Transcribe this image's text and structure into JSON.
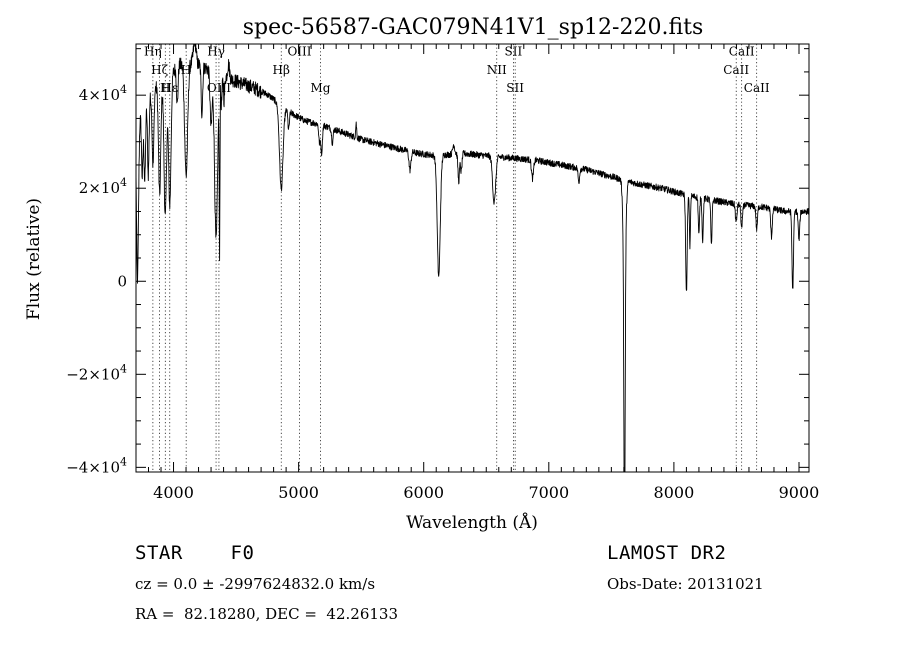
{
  "chart_data": {
    "type": "line",
    "title": "spec-56587-GAC079N41V1_sp12-220.fits",
    "xlabel": "Wavelength (Å)",
    "ylabel": "Flux (relative)",
    "xlim": [
      3700,
      9080
    ],
    "ylim": [
      -41000,
      51000
    ],
    "x_ticks": [
      {
        "value": 4000,
        "label": "4000"
      },
      {
        "value": 5000,
        "label": "5000"
      },
      {
        "value": 6000,
        "label": "6000"
      },
      {
        "value": 7000,
        "label": "7000"
      },
      {
        "value": 8000,
        "label": "8000"
      },
      {
        "value": 9000,
        "label": "9000"
      }
    ],
    "y_ticks": [
      {
        "value": -40000,
        "mant": "−4×10",
        "exp": "4"
      },
      {
        "value": -20000,
        "mant": "−2×10",
        "exp": "4"
      },
      {
        "value": 0,
        "mant": "0",
        "exp": ""
      },
      {
        "value": 20000,
        "mant": "2×10",
        "exp": "4"
      },
      {
        "value": 40000,
        "mant": "4×10",
        "exp": "4"
      }
    ],
    "lines": [
      {
        "label": "Hη",
        "x": 3835,
        "label_y": 48500
      },
      {
        "label": "Hζ",
        "x": 3889,
        "label_y": 44500
      },
      {
        "label": "Hε",
        "x": 3970,
        "label_y": 40700
      },
      {
        "label": "H",
        "x": 3934,
        "label_y": 40700
      },
      {
        "label": "H",
        "x": 4101,
        "label_y": 44500
      },
      {
        "label": "Hγ",
        "x": 4340,
        "label_y": 48500
      },
      {
        "label": "OIII",
        "x": 4363,
        "label_y": 40700
      },
      {
        "label": "Hβ",
        "x": 4861,
        "label_y": 44500
      },
      {
        "label": "OIII",
        "x": 5007,
        "label_y": 48500
      },
      {
        "label": "Mg",
        "x": 5175,
        "label_y": 40700
      },
      {
        "label": "NII",
        "x": 6584,
        "label_y": 44500
      },
      {
        "label": "SII",
        "x": 6717,
        "label_y": 48500
      },
      {
        "label": "SII",
        "x": 6731,
        "label_y": 40700
      },
      {
        "label": "CaII",
        "x": 8498,
        "label_y": 44500
      },
      {
        "label": "CaII",
        "x": 8542,
        "label_y": 48500
      },
      {
        "label": "CaII",
        "x": 8662,
        "label_y": 40700
      }
    ],
    "continuum": [
      [
        3700,
        34000
      ],
      [
        3780,
        38000
      ],
      [
        3850,
        41500
      ],
      [
        3950,
        44000
      ],
      [
        4050,
        46500
      ],
      [
        4150,
        47000
      ],
      [
        4250,
        46000
      ],
      [
        4350,
        44500
      ],
      [
        4450,
        43500
      ],
      [
        4550,
        42500
      ],
      [
        4650,
        41500
      ],
      [
        4760,
        40000
      ],
      [
        4850,
        38000
      ],
      [
        4950,
        36000
      ],
      [
        5050,
        34500
      ],
      [
        5200,
        33500
      ],
      [
        5350,
        32000
      ],
      [
        5500,
        30500
      ],
      [
        5650,
        29500
      ],
      [
        5800,
        28500
      ],
      [
        5950,
        27500
      ],
      [
        6100,
        27000
      ],
      [
        6300,
        27500
      ],
      [
        6500,
        27000
      ],
      [
        6700,
        26500
      ],
      [
        6900,
        26000
      ],
      [
        7100,
        25000
      ],
      [
        7300,
        24000
      ],
      [
        7500,
        22500
      ],
      [
        7700,
        21000
      ],
      [
        7900,
        20000
      ],
      [
        8100,
        18500
      ],
      [
        8300,
        17500
      ],
      [
        8500,
        16500
      ],
      [
        8700,
        16000
      ],
      [
        8900,
        15000
      ],
      [
        9080,
        15000
      ]
    ],
    "absorptions": [
      [
        3712,
        8,
        34000
      ],
      [
        3750,
        6,
        14000
      ],
      [
        3770,
        6,
        16000
      ],
      [
        3798,
        6,
        16000
      ],
      [
        3836,
        7,
        16000
      ],
      [
        3889,
        9,
        24000
      ],
      [
        3934,
        10,
        30000
      ],
      [
        3970,
        10,
        28000
      ],
      [
        4030,
        6,
        8000
      ],
      [
        4101,
        12,
        24000
      ],
      [
        4227,
        6,
        10000
      ],
      [
        4300,
        8,
        12000
      ],
      [
        4340,
        12,
        36000
      ],
      [
        4368,
        3,
        36000
      ],
      [
        4383,
        5,
        6000
      ],
      [
        4404,
        5,
        5000
      ],
      [
        4861,
        14,
        18000
      ],
      [
        4920,
        6,
        4000
      ],
      [
        5167,
        6,
        4000
      ],
      [
        5184,
        6,
        6000
      ],
      [
        5270,
        6,
        3000
      ],
      [
        5890,
        8,
        4000
      ],
      [
        6120,
        12,
        26000
      ],
      [
        6280,
        6,
        6000
      ],
      [
        6300,
        6,
        4000
      ],
      [
        6563,
        12,
        10000
      ],
      [
        6870,
        8,
        4000
      ],
      [
        7240,
        6,
        3000
      ],
      [
        7605,
        5,
        61000
      ],
      [
        7605,
        11,
        18000
      ],
      [
        8100,
        6,
        21000
      ],
      [
        8128,
        4,
        11000
      ],
      [
        8200,
        5,
        8000
      ],
      [
        8230,
        5,
        9000
      ],
      [
        8300,
        5,
        10000
      ],
      [
        8498,
        6,
        4000
      ],
      [
        8542,
        6,
        5000
      ],
      [
        8662,
        6,
        5000
      ],
      [
        8780,
        6,
        6000
      ],
      [
        8950,
        6,
        17000
      ],
      [
        9000,
        6,
        6000
      ]
    ],
    "emissions": [
      [
        4170,
        10,
        5000
      ],
      [
        4440,
        8,
        3000
      ],
      [
        5460,
        4,
        3000
      ],
      [
        6240,
        8,
        2000
      ]
    ],
    "noise": 700
  },
  "info": {
    "class_line": "STAR    F0",
    "survey": "LAMOST DR2",
    "redshift_line": "cz = 0.0 ± -2997624832.0 km/s",
    "obs_date_line": "Obs-Date: 20131021",
    "coords_line": "RA =  82.18280, DEC =  42.26133"
  }
}
